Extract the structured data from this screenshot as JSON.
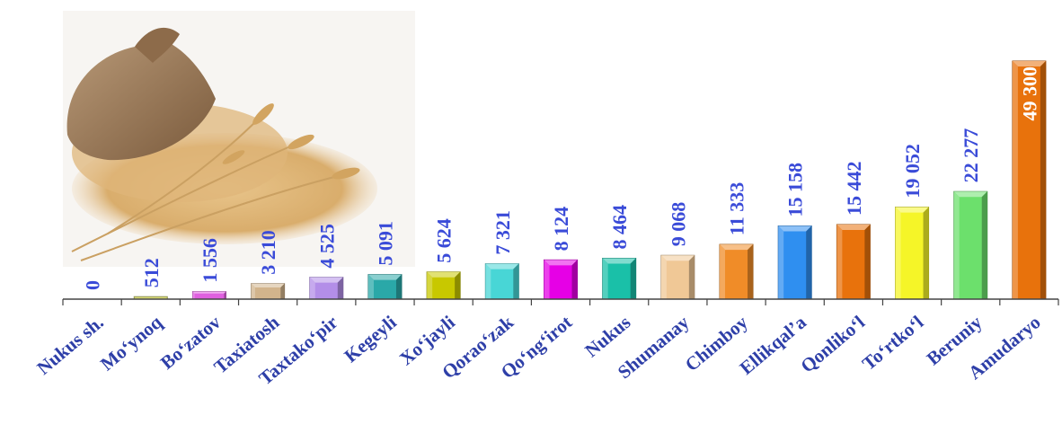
{
  "chart_data": {
    "type": "bar",
    "title": "",
    "xlabel": "",
    "ylabel": "",
    "ylim": [
      0,
      50000
    ],
    "grid": false,
    "legend": "none",
    "categories": [
      "Nukus sh.",
      "Mo‘ynoq",
      "Bo‘zatov",
      "Taxiatosh",
      "Taxtako‘pir",
      "Kegeyli",
      "Xo‘jayli",
      "Qorao‘zak",
      "Qo‘ng‘irot",
      "Nukus",
      "Shumanay",
      "Chimboy",
      "Ellikqal’a",
      "Qonliko‘l",
      "To‘rtko‘l",
      "Beruniy",
      "Amudaryo"
    ],
    "values": [
      0,
      512,
      1556,
      3210,
      4525,
      5091,
      5624,
      7321,
      8124,
      8464,
      9068,
      11333,
      15158,
      15442,
      19052,
      22277,
      49300
    ],
    "value_labels": [
      "0",
      "512",
      "1 556",
      "3 210",
      "4 525",
      "5 091",
      "5 624",
      "7 321",
      "8 124",
      "8 464",
      "9 068",
      "11 333",
      "15 158",
      "15 442",
      "19 052",
      "22 277",
      "49 300"
    ],
    "bar_colors": [
      "#c0c0c0",
      "#dde07a",
      "#e060e0",
      "#d2b48c",
      "#b38ee8",
      "#2aa8a8",
      "#c8c800",
      "#48d6d6",
      "#e600e6",
      "#1ac0a8",
      "#f0c896",
      "#f08c28",
      "#2f8ff0",
      "#e8720c",
      "#f5f528",
      "#6ce06c",
      "#e8720c"
    ],
    "label_color": "#3a4bd8",
    "label_color_inside": "#ffffff",
    "category_color": "#2e3fa8",
    "illustration": "wheat-sack-image"
  }
}
